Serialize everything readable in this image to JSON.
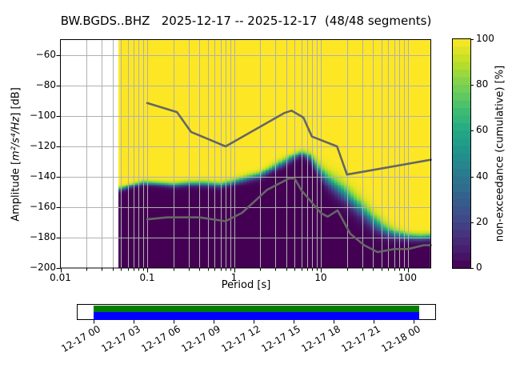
{
  "window": {
    "app": "PPSD plot",
    "title": "BW.BGDS..BHZ   2025-12-17 -- 2025-12-17  (48/48 segments)"
  },
  "chart_data": {
    "type": "heatmap",
    "title": "BW.BGDS..BHZ   2025-12-17 -- 2025-12-17  (48/48 segments)",
    "station": "BW.BGDS..BHZ",
    "date_range": "2025-12-17 -- 2025-12-17",
    "segments": "48/48",
    "xlabel": "Period [s]",
    "ylabel": {
      "prefix": "Amplitude [",
      "math": "m²/s⁴/Hz",
      "suffix": "] [dB]"
    },
    "x_axis": {
      "scale": "log",
      "range": [
        0.01,
        185
      ],
      "tick_values": [
        0.01,
        0.1,
        1,
        10,
        100
      ],
      "tick_labels": [
        "0.01",
        "0.1",
        "1",
        "10",
        "100"
      ],
      "minor_multiples": [
        2,
        3,
        4,
        5,
        6,
        7,
        8,
        9
      ]
    },
    "y_axis": {
      "range": [
        -200,
        -50
      ],
      "tick_values": [
        -60,
        -80,
        -100,
        -120,
        -140,
        -160,
        -180,
        -200
      ],
      "tick_labels": [
        "−60",
        "−80",
        "−100",
        "−120",
        "−140",
        "−160",
        "−180",
        "−200"
      ]
    },
    "grid": {
      "color": "#b0b0b0",
      "x_minor": true,
      "y_minor": false
    },
    "colorbar": {
      "label": "non-exceedance (cumulative) [%]",
      "range": [
        0,
        100
      ],
      "tick_values": [
        0,
        20,
        40,
        60,
        80,
        100
      ],
      "tick_labels": [
        "0",
        "20",
        "40",
        "60",
        "80",
        "100"
      ],
      "colormap": "viridis",
      "steps": 30,
      "viridis_stops": [
        "#440154",
        "#482475",
        "#414487",
        "#355f8d",
        "#2a788e",
        "#21918c",
        "#22a884",
        "#44bf70",
        "#7ad151",
        "#bddf26",
        "#fde725"
      ]
    },
    "noise_models": {
      "color": "#666666",
      "low_model": [
        [
          0.1,
          -168.0
        ],
        [
          0.17,
          -166.7
        ],
        [
          0.4,
          -166.7
        ],
        [
          0.8,
          -169.2
        ],
        [
          1.24,
          -163.7
        ],
        [
          2.4,
          -148.6
        ],
        [
          4.3,
          -141.1
        ],
        [
          5.0,
          -141.1
        ],
        [
          6.0,
          -149.0
        ],
        [
          10.0,
          -163.8
        ],
        [
          12.0,
          -166.2
        ],
        [
          15.6,
          -162.1
        ],
        [
          21.9,
          -177.5
        ],
        [
          31.6,
          -185.0
        ],
        [
          45.0,
          -189.5
        ],
        [
          70.0,
          -187.5
        ],
        [
          101.0,
          -187.5
        ],
        [
          154.0,
          -185.0
        ],
        [
          185.0,
          -185.0
        ]
      ],
      "high_model": [
        [
          0.1,
          -91.5
        ],
        [
          0.22,
          -97.4
        ],
        [
          0.32,
          -110.5
        ],
        [
          0.8,
          -120.0
        ],
        [
          3.8,
          -98.0
        ],
        [
          4.6,
          -96.5
        ],
        [
          6.3,
          -101.0
        ],
        [
          7.9,
          -113.5
        ],
        [
          15.4,
          -120.0
        ],
        [
          20.0,
          -138.5
        ],
        [
          185.0,
          -128.8
        ]
      ]
    },
    "distribution": {
      "comment": "PPSD non-exceedance distribution per period bin: [period_s, median_dB, sigma_dB]",
      "period_start": 0.047,
      "period_octave_step": 0.125,
      "points": [
        [
          0.047,
          -148.5,
          1.3
        ],
        [
          0.065,
          -146,
          1.3
        ],
        [
          0.09,
          -144,
          1.4
        ],
        [
          0.13,
          -144.5,
          1.4
        ],
        [
          0.2,
          -145.5,
          1.6
        ],
        [
          0.3,
          -144.5,
          1.6
        ],
        [
          0.45,
          -144.5,
          1.8
        ],
        [
          0.7,
          -145.5,
          1.8
        ],
        [
          1.0,
          -143.5,
          1.8
        ],
        [
          1.4,
          -141,
          1.9
        ],
        [
          2.0,
          -139,
          2.0
        ],
        [
          3.0,
          -133.5,
          2.2
        ],
        [
          4.5,
          -128,
          2.2
        ],
        [
          6.0,
          -124.5,
          1.8
        ],
        [
          7.5,
          -127,
          2.5
        ],
        [
          9.0,
          -133,
          3.5
        ],
        [
          11,
          -140,
          4.5
        ],
        [
          14,
          -145,
          5.0
        ],
        [
          18,
          -150,
          5.5
        ],
        [
          23,
          -155.5,
          5.5
        ],
        [
          30,
          -162,
          5.5
        ],
        [
          40,
          -169,
          5.0
        ],
        [
          55,
          -175,
          4.0
        ],
        [
          70,
          -177.5,
          3.0
        ],
        [
          100,
          -179.5,
          2.2
        ],
        [
          140,
          -180,
          2.0
        ],
        [
          185,
          -179.5,
          2.0
        ]
      ]
    },
    "timeline": {
      "tick_labels": [
        "12-17 00",
        "12-17 03",
        "12-17 06",
        "12-17 09",
        "12-17 12",
        "12-17 15",
        "12-17 18",
        "12-17 21",
        "12-18 00"
      ],
      "hours_per_tick": 3,
      "coverage_start_frac": 0.0,
      "coverage_end_frac": 1.0165,
      "used_color": "#008000",
      "data_color": "#0000ff"
    }
  }
}
